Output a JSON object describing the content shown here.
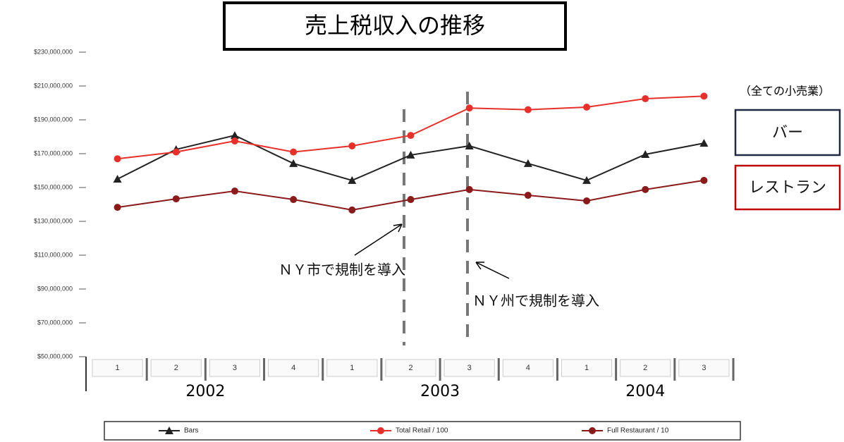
{
  "chart_data": {
    "type": "line",
    "title": "売上税収入の推移",
    "categories": [
      "1",
      "2",
      "3",
      "4",
      "1",
      "2",
      "3",
      "4",
      "1",
      "2",
      "3"
    ],
    "year_labels": [
      "2002",
      "2003",
      "2004"
    ],
    "series": [
      {
        "name": "Bars",
        "color": "#222222",
        "marker": "triangle",
        "values": [
          155000000,
          172500000,
          180800000,
          164200000,
          154200000,
          169200000,
          174600000,
          164200000,
          154200000,
          169600000,
          176200000
        ]
      },
      {
        "name": "Total Retail / 100",
        "color": "#e8302a",
        "marker": "circle",
        "values": [
          167000000,
          171000000,
          177500000,
          171000000,
          174600000,
          180800000,
          197000000,
          196000000,
          197500000,
          202500000,
          204000000
        ]
      },
      {
        "name": "Full Restaurant / 10",
        "color": "#8b1a1a",
        "marker": "circle",
        "values": [
          138300000,
          143300000,
          147900000,
          142900000,
          136700000,
          142900000,
          148800000,
          145400000,
          142100000,
          148800000,
          154200000
        ]
      }
    ],
    "ylim": [
      50000000,
      230000000
    ],
    "yticks": [
      {
        "value": 50000000,
        "label": "$50,000,000"
      },
      {
        "value": 70000000,
        "label": "$70,000,000"
      },
      {
        "value": 90000000,
        "label": "$90,000,000"
      },
      {
        "value": 110000000,
        "label": "$110,000,000"
      },
      {
        "value": 130000000,
        "label": "$130,000,000"
      },
      {
        "value": 150000000,
        "label": "$150,000,000"
      },
      {
        "value": 170000000,
        "label": "$170,000,000"
      },
      {
        "value": 190000000,
        "label": "$190,000,000"
      },
      {
        "value": 210000000,
        "label": "$210,000,000"
      },
      {
        "value": 230000000,
        "label": "$230,000,000"
      }
    ],
    "annotations": [
      "（全ての小売業）",
      "バー",
      "レストラン",
      "ＮＹ市で規制を導入",
      "ＮＹ州で規制を導入"
    ]
  }
}
